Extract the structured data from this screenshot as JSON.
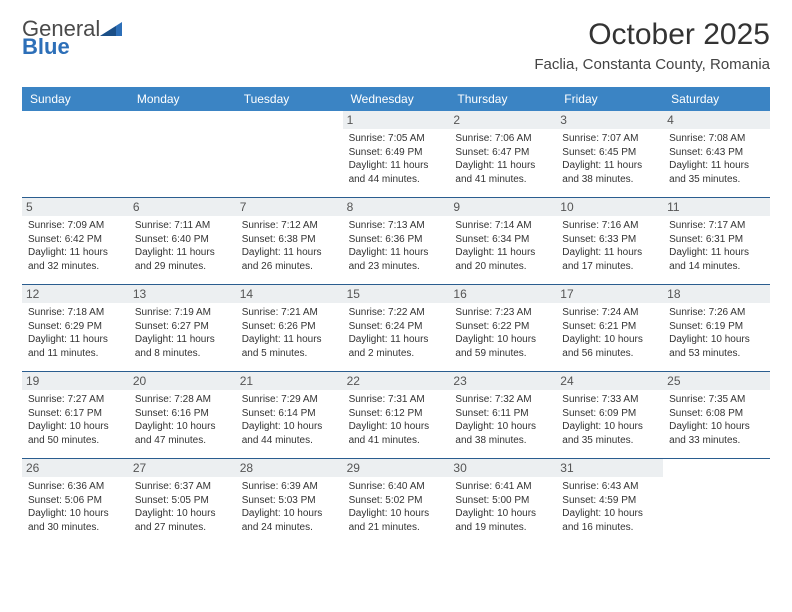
{
  "logo": {
    "line1": "General",
    "line2": "Blue",
    "brand_color": "#2d6fb8"
  },
  "title": "October 2025",
  "location": "Faclia, Constanta County, Romania",
  "colors": {
    "header_bg": "#3b84c4",
    "header_text": "#ffffff",
    "daynum_bg": "#eceff1",
    "week_border": "#2a5d8f",
    "text": "#333333"
  },
  "day_headers": [
    "Sunday",
    "Monday",
    "Tuesday",
    "Wednesday",
    "Thursday",
    "Friday",
    "Saturday"
  ],
  "weeks": [
    [
      {
        "empty": true
      },
      {
        "empty": true
      },
      {
        "empty": true
      },
      {
        "n": "1",
        "sr": "7:05 AM",
        "ss": "6:49 PM",
        "dl": "11 hours and 44 minutes."
      },
      {
        "n": "2",
        "sr": "7:06 AM",
        "ss": "6:47 PM",
        "dl": "11 hours and 41 minutes."
      },
      {
        "n": "3",
        "sr": "7:07 AM",
        "ss": "6:45 PM",
        "dl": "11 hours and 38 minutes."
      },
      {
        "n": "4",
        "sr": "7:08 AM",
        "ss": "6:43 PM",
        "dl": "11 hours and 35 minutes."
      }
    ],
    [
      {
        "n": "5",
        "sr": "7:09 AM",
        "ss": "6:42 PM",
        "dl": "11 hours and 32 minutes."
      },
      {
        "n": "6",
        "sr": "7:11 AM",
        "ss": "6:40 PM",
        "dl": "11 hours and 29 minutes."
      },
      {
        "n": "7",
        "sr": "7:12 AM",
        "ss": "6:38 PM",
        "dl": "11 hours and 26 minutes."
      },
      {
        "n": "8",
        "sr": "7:13 AM",
        "ss": "6:36 PM",
        "dl": "11 hours and 23 minutes."
      },
      {
        "n": "9",
        "sr": "7:14 AM",
        "ss": "6:34 PM",
        "dl": "11 hours and 20 minutes."
      },
      {
        "n": "10",
        "sr": "7:16 AM",
        "ss": "6:33 PM",
        "dl": "11 hours and 17 minutes."
      },
      {
        "n": "11",
        "sr": "7:17 AM",
        "ss": "6:31 PM",
        "dl": "11 hours and 14 minutes."
      }
    ],
    [
      {
        "n": "12",
        "sr": "7:18 AM",
        "ss": "6:29 PM",
        "dl": "11 hours and 11 minutes."
      },
      {
        "n": "13",
        "sr": "7:19 AM",
        "ss": "6:27 PM",
        "dl": "11 hours and 8 minutes."
      },
      {
        "n": "14",
        "sr": "7:21 AM",
        "ss": "6:26 PM",
        "dl": "11 hours and 5 minutes."
      },
      {
        "n": "15",
        "sr": "7:22 AM",
        "ss": "6:24 PM",
        "dl": "11 hours and 2 minutes."
      },
      {
        "n": "16",
        "sr": "7:23 AM",
        "ss": "6:22 PM",
        "dl": "10 hours and 59 minutes."
      },
      {
        "n": "17",
        "sr": "7:24 AM",
        "ss": "6:21 PM",
        "dl": "10 hours and 56 minutes."
      },
      {
        "n": "18",
        "sr": "7:26 AM",
        "ss": "6:19 PM",
        "dl": "10 hours and 53 minutes."
      }
    ],
    [
      {
        "n": "19",
        "sr": "7:27 AM",
        "ss": "6:17 PM",
        "dl": "10 hours and 50 minutes."
      },
      {
        "n": "20",
        "sr": "7:28 AM",
        "ss": "6:16 PM",
        "dl": "10 hours and 47 minutes."
      },
      {
        "n": "21",
        "sr": "7:29 AM",
        "ss": "6:14 PM",
        "dl": "10 hours and 44 minutes."
      },
      {
        "n": "22",
        "sr": "7:31 AM",
        "ss": "6:12 PM",
        "dl": "10 hours and 41 minutes."
      },
      {
        "n": "23",
        "sr": "7:32 AM",
        "ss": "6:11 PM",
        "dl": "10 hours and 38 minutes."
      },
      {
        "n": "24",
        "sr": "7:33 AM",
        "ss": "6:09 PM",
        "dl": "10 hours and 35 minutes."
      },
      {
        "n": "25",
        "sr": "7:35 AM",
        "ss": "6:08 PM",
        "dl": "10 hours and 33 minutes."
      }
    ],
    [
      {
        "n": "26",
        "sr": "6:36 AM",
        "ss": "5:06 PM",
        "dl": "10 hours and 30 minutes."
      },
      {
        "n": "27",
        "sr": "6:37 AM",
        "ss": "5:05 PM",
        "dl": "10 hours and 27 minutes."
      },
      {
        "n": "28",
        "sr": "6:39 AM",
        "ss": "5:03 PM",
        "dl": "10 hours and 24 minutes."
      },
      {
        "n": "29",
        "sr": "6:40 AM",
        "ss": "5:02 PM",
        "dl": "10 hours and 21 minutes."
      },
      {
        "n": "30",
        "sr": "6:41 AM",
        "ss": "5:00 PM",
        "dl": "10 hours and 19 minutes."
      },
      {
        "n": "31",
        "sr": "6:43 AM",
        "ss": "4:59 PM",
        "dl": "10 hours and 16 minutes."
      },
      {
        "empty": true
      }
    ]
  ],
  "labels": {
    "sunrise": "Sunrise:",
    "sunset": "Sunset:",
    "daylight": "Daylight:"
  }
}
